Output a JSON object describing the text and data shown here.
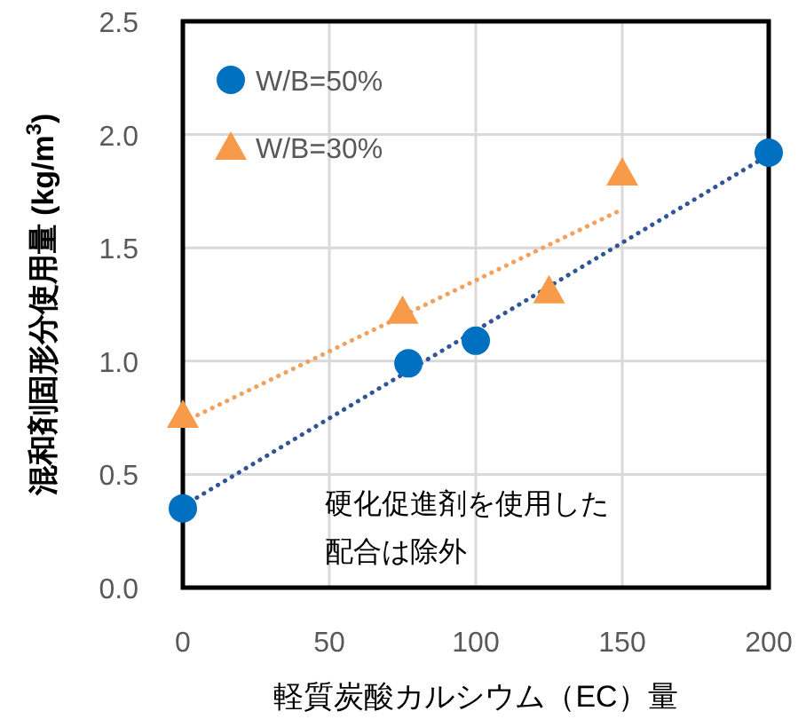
{
  "chart_data": {
    "type": "scatter",
    "xlabel": "軽質炭酸カルシウム（EC）量",
    "ylabel": "混和剤固形分使用量 (kg/m$^{3}$)",
    "annotations": [
      "硬化促進剤を使用した",
      "配合は除外"
    ],
    "xlim": [
      0,
      200
    ],
    "ylim": [
      0,
      2.5
    ],
    "xticks": [
      0,
      50,
      100,
      150,
      200
    ],
    "yticks": [
      {
        "value": 0,
        "label": "0.0"
      },
      {
        "value": 0.5,
        "label": "0.5"
      },
      {
        "value": 1,
        "label": "1.0"
      },
      {
        "value": 1.5,
        "label": "1.5"
      },
      {
        "value": 2,
        "label": "2.0"
      },
      {
        "value": 2.5,
        "label": "2.5"
      }
    ],
    "grid": true,
    "legend": "top left",
    "series": [
      {
        "type": "line",
        "color": "#2f5597",
        "line_style": "dotted",
        "marker": "none",
        "x": [
          0,
          200
        ],
        "values": [
          0.36,
          1.91
        ]
      },
      {
        "type": "line",
        "color": "#f4a15d",
        "line_style": "dotted",
        "marker": "none",
        "x": [
          0,
          150
        ],
        "values": [
          0.73,
          1.67
        ]
      },
      {
        "type": "scatter",
        "name": "W/B=50%",
        "color": "#0070c0",
        "marker": "circle",
        "x": [
          0,
          77,
          100,
          200
        ],
        "values": [
          0.35,
          0.99,
          1.09,
          1.92
        ]
      },
      {
        "type": "scatter",
        "name": "W/B=30%",
        "color": "#f79b4b",
        "marker": "triangle",
        "x": [
          0,
          75,
          125,
          150
        ],
        "values": [
          0.76,
          1.22,
          1.31,
          1.83
        ]
      }
    ]
  }
}
